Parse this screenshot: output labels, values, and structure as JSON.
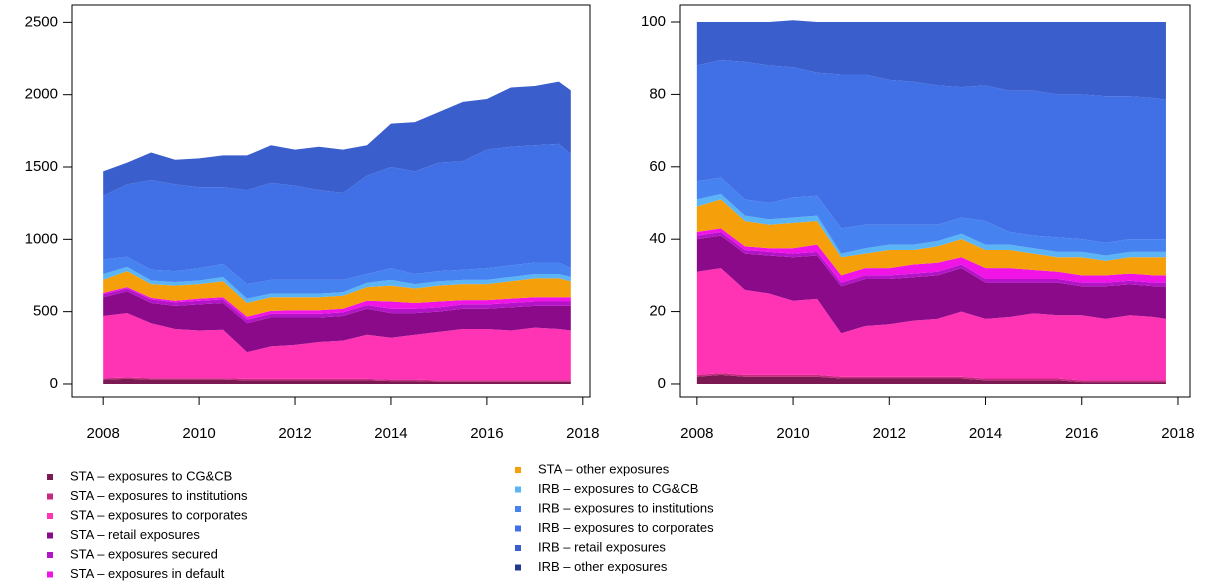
{
  "chart_data": [
    {
      "type": "area",
      "stacked": true,
      "x": [
        2008,
        2008.5,
        2009,
        2009.5,
        2010,
        2010.5,
        2011,
        2011.5,
        2012,
        2012.5,
        2013,
        2013.5,
        2014,
        2014.5,
        2015,
        2015.5,
        2016,
        2016.5,
        2017,
        2017.5,
        2017.75
      ],
      "xlim": [
        2007.35,
        2018.15
      ],
      "xticks": [
        2008,
        2010,
        2012,
        2014,
        2016,
        2018
      ],
      "ylim": [
        -90,
        2620
      ],
      "yticks": [
        0,
        500,
        1000,
        1500,
        2000,
        2500
      ],
      "series": [
        {
          "name": "STA – exposures to CG&CB",
          "color": "#7b1a52",
          "values": [
            30,
            35,
            30,
            30,
            30,
            30,
            25,
            25,
            25,
            25,
            25,
            25,
            20,
            20,
            15,
            15,
            15,
            15,
            15,
            15,
            15
          ]
        },
        {
          "name": "STA – exposures to institutions",
          "color": "#c82a80",
          "values": [
            10,
            10,
            10,
            10,
            10,
            10,
            10,
            10,
            10,
            10,
            10,
            10,
            10,
            10,
            10,
            10,
            10,
            10,
            10,
            10,
            10
          ]
        },
        {
          "name": "STA – exposures to corporates",
          "color": "#ff34b4",
          "values": [
            430,
            445,
            380,
            340,
            330,
            335,
            185,
            225,
            235,
            255,
            265,
            305,
            290,
            310,
            335,
            355,
            355,
            345,
            365,
            355,
            345
          ]
        },
        {
          "name": "STA – retail exposures",
          "color": "#8a0a8a",
          "values": [
            130,
            150,
            140,
            160,
            180,
            185,
            200,
            200,
            190,
            170,
            170,
            180,
            170,
            150,
            140,
            140,
            140,
            160,
            150,
            160,
            170
          ]
        },
        {
          "name": "STA – exposures secured",
          "color": "#b414c8",
          "values": [
            20,
            20,
            25,
            25,
            25,
            25,
            25,
            25,
            25,
            25,
            25,
            25,
            30,
            30,
            30,
            30,
            30,
            30,
            30,
            30,
            30
          ]
        },
        {
          "name": "STA – exposures in default",
          "color": "#f014e6",
          "values": [
            10,
            10,
            10,
            10,
            15,
            15,
            20,
            20,
            25,
            25,
            25,
            30,
            50,
            40,
            40,
            30,
            30,
            30,
            30,
            30,
            30
          ]
        },
        {
          "name": "STA – other exposures",
          "color": "#f5a00a",
          "values": [
            90,
            110,
            95,
            105,
            100,
            110,
            95,
            95,
            90,
            90,
            90,
            95,
            110,
            100,
            110,
            110,
            110,
            120,
            130,
            130,
            110
          ]
        },
        {
          "name": "IRB – exposures to CG&CB",
          "color": "#5ab4f5",
          "values": [
            40,
            30,
            25,
            25,
            25,
            30,
            30,
            25,
            25,
            25,
            25,
            30,
            40,
            30,
            30,
            30,
            30,
            30,
            30,
            30,
            30
          ]
        },
        {
          "name": "IRB – exposures to institutions",
          "color": "#4682f0",
          "values": [
            100,
            70,
            75,
            75,
            85,
            90,
            100,
            95,
            95,
            95,
            85,
            60,
            80,
            70,
            70,
            70,
            80,
            80,
            80,
            80,
            60
          ]
        },
        {
          "name": "IRB – exposures to corporates",
          "color": "#4170e6",
          "values": [
            440,
            500,
            620,
            600,
            560,
            530,
            650,
            670,
            650,
            620,
            600,
            680,
            700,
            710,
            750,
            750,
            820,
            820,
            810,
            820,
            790
          ]
        },
        {
          "name": "IRB – retail exposures",
          "color": "#3a5fcd",
          "values": [
            170,
            150,
            190,
            170,
            200,
            220,
            240,
            260,
            250,
            300,
            300,
            210,
            300,
            340,
            350,
            410,
            350,
            410,
            410,
            430,
            440
          ]
        },
        {
          "name": "IRB – other exposures",
          "color": "#1e3a8c",
          "values": [
            0,
            0,
            0,
            0,
            0,
            0,
            0,
            0,
            0,
            0,
            0,
            0,
            0,
            0,
            0,
            0,
            0,
            0,
            0,
            0,
            0
          ]
        }
      ]
    },
    {
      "type": "area",
      "stacked": true,
      "x": [
        2008,
        2008.5,
        2009,
        2009.5,
        2010,
        2010.5,
        2011,
        2011.5,
        2012,
        2012.5,
        2013,
        2013.5,
        2014,
        2014.5,
        2015,
        2015.5,
        2016,
        2016.5,
        2017,
        2017.5,
        2017.75
      ],
      "xlim": [
        2007.65,
        2018.25
      ],
      "xticks": [
        2008,
        2010,
        2012,
        2014,
        2016,
        2018
      ],
      "ylim": [
        -3.6,
        104.7
      ],
      "yticks": [
        0,
        20,
        40,
        60,
        80,
        100
      ],
      "series": [
        {
          "color": "#7b1a52",
          "values": [
            2,
            2.5,
            2,
            2,
            2,
            2,
            1.5,
            1.5,
            1.5,
            1.5,
            1.5,
            1.5,
            1,
            1,
            1,
            1,
            0.5,
            0.5,
            0.5,
            0.5,
            0.5
          ]
        },
        {
          "color": "#c82a80",
          "values": [
            0.5,
            0.5,
            0.5,
            0.5,
            0.5,
            0.5,
            0.5,
            0.5,
            0.5,
            0.5,
            0.5,
            0.5,
            0.5,
            0.5,
            0.5,
            0.5,
            0.5,
            0.5,
            0.5,
            0.5,
            0.5
          ]
        },
        {
          "color": "#ff34b4",
          "values": [
            28.5,
            29,
            23.5,
            22.5,
            20.5,
            21,
            12,
            14,
            14.5,
            15.5,
            16,
            18,
            16.5,
            17,
            18,
            17.5,
            18,
            17,
            18,
            17.5,
            17
          ]
        },
        {
          "color": "#8a0a8a",
          "values": [
            9,
            9,
            10,
            10.5,
            12,
            12,
            13,
            13,
            12.5,
            12,
            12,
            12,
            10,
            9.5,
            8.5,
            9,
            8,
            9,
            8.5,
            8.5,
            9
          ]
        },
        {
          "color": "#b414c8",
          "values": [
            1,
            1,
            1,
            1,
            1,
            1,
            1,
            1,
            1,
            1,
            1,
            1,
            1,
            1,
            1,
            1,
            1,
            1,
            1,
            1,
            1
          ]
        },
        {
          "color": "#f014e6",
          "values": [
            1,
            1,
            1,
            1,
            1.5,
            2,
            2,
            2,
            2,
            2.5,
            2.5,
            2,
            3,
            3,
            2.5,
            2,
            2,
            2,
            2,
            2,
            2
          ]
        },
        {
          "color": "#f5a00a",
          "values": [
            7,
            8,
            7,
            6.5,
            7,
            6.5,
            5,
            4,
            5,
            4,
            4.5,
            5,
            5,
            5,
            4.5,
            4,
            5,
            4,
            4.5,
            5,
            5
          ]
        },
        {
          "color": "#5ab4f5",
          "values": [
            2,
            1.5,
            1.5,
            1.5,
            1.5,
            1.5,
            1,
            1.5,
            1.5,
            1.5,
            1.5,
            1.5,
            1.5,
            1.5,
            1.5,
            1.5,
            1.5,
            1.5,
            1.5,
            1.5,
            1.5
          ]
        },
        {
          "color": "#4682f0",
          "values": [
            5,
            4.5,
            4.5,
            4.5,
            5.5,
            5.5,
            7,
            6.5,
            5.5,
            5.5,
            4.5,
            4.5,
            6.5,
            3.5,
            3.5,
            4,
            3.5,
            3.5,
            3.5,
            3.5,
            3.5
          ]
        },
        {
          "color": "#4170e6",
          "values": [
            32,
            32.5,
            38,
            38,
            36,
            34,
            42.5,
            41.5,
            40,
            39.5,
            38.5,
            36,
            37.5,
            39,
            40,
            39.5,
            40,
            40.5,
            39.5,
            39,
            38.5
          ]
        },
        {
          "color": "#3a5fcd",
          "values": [
            12,
            10.5,
            11,
            12,
            13,
            14,
            14.5,
            14.5,
            16,
            16.5,
            17.5,
            18,
            17.5,
            19,
            19,
            20,
            20,
            20.5,
            20.5,
            21,
            21.5
          ]
        },
        {
          "color": "#1e3a8c",
          "values": [
            0,
            0,
            0,
            0,
            0,
            0,
            0,
            0,
            0,
            0,
            0,
            0,
            0,
            0,
            0,
            0,
            0,
            0,
            0,
            0,
            0
          ]
        }
      ]
    }
  ]
}
